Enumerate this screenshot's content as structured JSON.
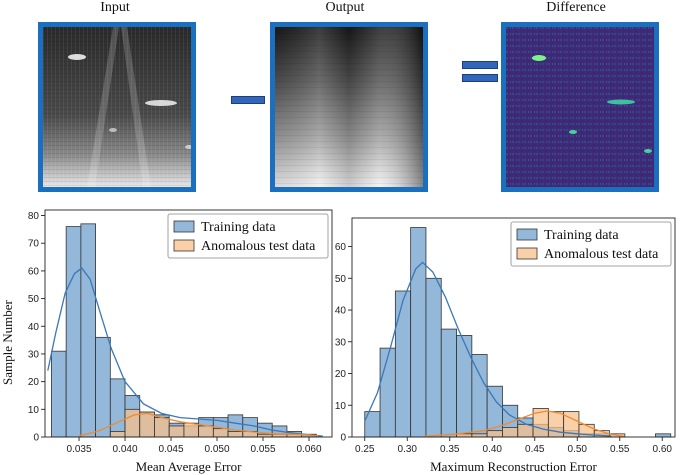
{
  "panels": {
    "input_title": "Input",
    "output_title": "Output",
    "difference_title": "Difference"
  },
  "colors": {
    "frame": "#1a6fbf",
    "operator": "#3366bb",
    "train_fill": "#8db4d8",
    "train_line": "#3a78b8",
    "anom_fill": "#f7c08a",
    "anom_line": "#f08a30",
    "diff_bg": "#3b1f6e",
    "diff_spot": "#5cf08a"
  },
  "y_axis_label": "Sample Number",
  "chart_data": [
    {
      "type": "bar",
      "name": "mean-average-error",
      "xlabel": "Mean Average Error",
      "ylabel": "Sample Number",
      "xlim": [
        0.0313,
        0.0625
      ],
      "ylim": [
        0,
        82
      ],
      "xticks": [
        0.035,
        0.04,
        0.045,
        0.05,
        0.055,
        0.06
      ],
      "xtick_labels": [
        "0.035",
        "0.040",
        "0.045",
        "0.050",
        "0.055",
        "0.060"
      ],
      "yticks": [
        0,
        10,
        20,
        30,
        40,
        50,
        60,
        70,
        80
      ],
      "bin_edges": [
        0.032,
        0.0336,
        0.0352,
        0.0368,
        0.0384,
        0.04,
        0.0416,
        0.0432,
        0.0448,
        0.0464,
        0.048,
        0.0496,
        0.0512,
        0.0528,
        0.0544,
        0.056,
        0.0576,
        0.0592,
        0.0608
      ],
      "series": [
        {
          "name": "Training data",
          "values": [
            31,
            76,
            77,
            36,
            21,
            15,
            9,
            8,
            5,
            4,
            7,
            7,
            8,
            7,
            5,
            4,
            2,
            1
          ],
          "kde": [
            [
              0.0316,
              24
            ],
            [
              0.0325,
              38
            ],
            [
              0.0335,
              52
            ],
            [
              0.0345,
              59
            ],
            [
              0.0353,
              61
            ],
            [
              0.0362,
              57
            ],
            [
              0.0372,
              46
            ],
            [
              0.0385,
              32
            ],
            [
              0.04,
              20
            ],
            [
              0.042,
              12
            ],
            [
              0.044,
              8.5
            ],
            [
              0.046,
              7
            ],
            [
              0.048,
              6.5
            ],
            [
              0.05,
              6
            ],
            [
              0.052,
              5
            ],
            [
              0.054,
              4
            ],
            [
              0.056,
              2.5
            ],
            [
              0.058,
              1.5
            ],
            [
              0.06,
              0.8
            ],
            [
              0.0615,
              0.3
            ]
          ]
        },
        {
          "name": "Anomalous test data",
          "values": [
            0,
            0,
            0,
            0,
            2,
            10,
            9,
            7,
            4,
            5,
            4,
            3,
            2,
            2,
            1,
            1,
            1,
            0
          ],
          "kde": [
            [
              0.035,
              0.5
            ],
            [
              0.037,
              2
            ],
            [
              0.039,
              5
            ],
            [
              0.041,
              8
            ],
            [
              0.0425,
              8.5
            ],
            [
              0.044,
              7
            ],
            [
              0.046,
              5.5
            ],
            [
              0.048,
              4.5
            ],
            [
              0.05,
              3.5
            ],
            [
              0.052,
              2.5
            ],
            [
              0.054,
              1.8
            ],
            [
              0.056,
              1.2
            ],
            [
              0.058,
              1
            ],
            [
              0.06,
              0.8
            ],
            [
              0.061,
              0.5
            ]
          ]
        }
      ],
      "legend": [
        "Training data",
        "Anomalous test data"
      ]
    },
    {
      "type": "bar",
      "name": "maximum-reconstruction-error",
      "xlabel": "Maximum Reconstruction Error",
      "ylabel": "",
      "xlim": [
        0.235,
        0.615
      ],
      "ylim": [
        0,
        69
      ],
      "xticks": [
        0.25,
        0.3,
        0.35,
        0.4,
        0.45,
        0.5,
        0.55,
        0.6
      ],
      "xtick_labels": [
        "0.25",
        "0.30",
        "0.35",
        "0.40",
        "0.45",
        "0.50",
        "0.55",
        "0.60"
      ],
      "yticks": [
        0,
        10,
        20,
        30,
        40,
        50,
        60
      ],
      "bin_edges": [
        0.25,
        0.268,
        0.286,
        0.304,
        0.322,
        0.34,
        0.358,
        0.376,
        0.394,
        0.412,
        0.43,
        0.448,
        0.466,
        0.484,
        0.502,
        0.52,
        0.538,
        0.556,
        0.574,
        0.592,
        0.61
      ],
      "series": [
        {
          "name": "Training data",
          "values": [
            8,
            28,
            46,
            66,
            50,
            34,
            32,
            26,
            16,
            10,
            6,
            4,
            3,
            2,
            1,
            1,
            0,
            0,
            0,
            1
          ],
          "kde": [
            [
              0.25,
              5
            ],
            [
              0.265,
              14
            ],
            [
              0.28,
              28
            ],
            [
              0.295,
              43
            ],
            [
              0.31,
              53
            ],
            [
              0.318,
              55
            ],
            [
              0.33,
              52
            ],
            [
              0.345,
              44
            ],
            [
              0.36,
              34
            ],
            [
              0.375,
              25
            ],
            [
              0.39,
              17
            ],
            [
              0.405,
              11
            ],
            [
              0.42,
              7
            ],
            [
              0.44,
              4
            ],
            [
              0.46,
              2.5
            ],
            [
              0.48,
              1.5
            ],
            [
              0.5,
              1
            ],
            [
              0.52,
              0.6
            ],
            [
              0.54,
              0.3
            ]
          ]
        },
        {
          "name": "Anomalous test data",
          "values": [
            0,
            0,
            0,
            0,
            0,
            0,
            1,
            1,
            2,
            3,
            4,
            9,
            8,
            8,
            4,
            2,
            1,
            0,
            0,
            0
          ],
          "kde": [
            [
              0.32,
              0.2
            ],
            [
              0.36,
              1
            ],
            [
              0.39,
              2
            ],
            [
              0.41,
              3.5
            ],
            [
              0.43,
              5.5
            ],
            [
              0.45,
              7.5
            ],
            [
              0.465,
              8.2
            ],
            [
              0.48,
              7.5
            ],
            [
              0.5,
              5
            ],
            [
              0.52,
              2.5
            ],
            [
              0.54,
              0.8
            ],
            [
              0.555,
              0.2
            ]
          ]
        }
      ],
      "legend": [
        "Training data",
        "Anomalous test data"
      ]
    }
  ]
}
